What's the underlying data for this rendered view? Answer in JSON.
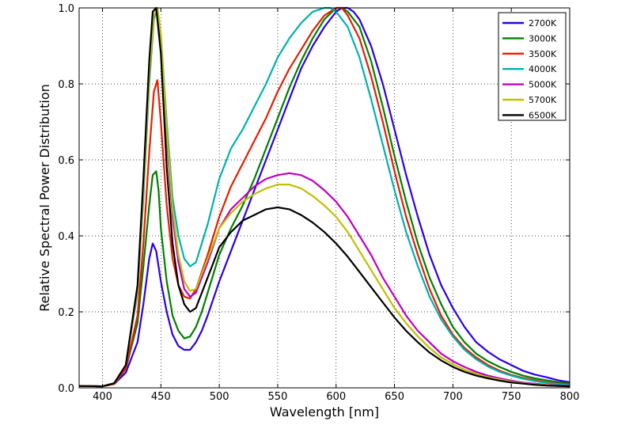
{
  "chart_data": {
    "type": "line",
    "title": "",
    "xlabel": "Wavelength [nm]",
    "ylabel": "Relative Spectral Power Distribution",
    "xlim": [
      380,
      800
    ],
    "ylim": [
      0.0,
      1.0
    ],
    "xticks": [
      400,
      450,
      500,
      550,
      600,
      650,
      700,
      750,
      800
    ],
    "yticks": [
      0.0,
      0.2,
      0.4,
      0.6,
      0.8,
      1.0
    ],
    "xtick_labels": [
      "400",
      "450",
      "500",
      "550",
      "600",
      "650",
      "700",
      "750",
      "800"
    ],
    "ytick_labels": [
      "0.0",
      "0.2",
      "0.4",
      "0.6",
      "0.8",
      "1.0"
    ],
    "grid": true,
    "legend_position": "top-right",
    "series": [
      {
        "name": "2700K",
        "color": "#2b00e6",
        "x": [
          380,
          400,
          410,
          420,
          430,
          435,
          440,
          443,
          446,
          450,
          455,
          460,
          465,
          470,
          475,
          480,
          485,
          490,
          500,
          510,
          520,
          530,
          540,
          550,
          560,
          570,
          580,
          590,
          600,
          605,
          610,
          615,
          620,
          630,
          640,
          650,
          660,
          670,
          680,
          690,
          700,
          710,
          720,
          730,
          740,
          750,
          760,
          770,
          780,
          790,
          800
        ],
        "y": [
          0.005,
          0.004,
          0.01,
          0.04,
          0.12,
          0.22,
          0.34,
          0.38,
          0.36,
          0.28,
          0.2,
          0.14,
          0.11,
          0.1,
          0.1,
          0.12,
          0.15,
          0.19,
          0.28,
          0.36,
          0.44,
          0.52,
          0.6,
          0.68,
          0.76,
          0.84,
          0.9,
          0.95,
          0.99,
          1.0,
          1.0,
          0.99,
          0.97,
          0.9,
          0.8,
          0.68,
          0.56,
          0.45,
          0.35,
          0.27,
          0.21,
          0.16,
          0.12,
          0.095,
          0.075,
          0.06,
          0.045,
          0.035,
          0.028,
          0.02,
          0.015
        ]
      },
      {
        "name": "3000K",
        "color": "#007f00",
        "x": [
          380,
          400,
          410,
          420,
          430,
          435,
          440,
          443,
          446,
          448,
          450,
          455,
          460,
          465,
          470,
          475,
          480,
          485,
          490,
          500,
          510,
          520,
          530,
          540,
          550,
          560,
          570,
          580,
          590,
          600,
          605,
          610,
          620,
          630,
          640,
          650,
          660,
          670,
          680,
          690,
          700,
          710,
          720,
          730,
          740,
          750,
          760,
          770,
          780,
          790,
          800
        ],
        "y": [
          0.005,
          0.004,
          0.01,
          0.05,
          0.17,
          0.32,
          0.48,
          0.56,
          0.57,
          0.52,
          0.42,
          0.28,
          0.19,
          0.15,
          0.13,
          0.135,
          0.16,
          0.2,
          0.25,
          0.35,
          0.42,
          0.48,
          0.55,
          0.63,
          0.71,
          0.79,
          0.86,
          0.92,
          0.97,
          1.0,
          1.0,
          0.99,
          0.95,
          0.86,
          0.74,
          0.61,
          0.49,
          0.38,
          0.29,
          0.22,
          0.16,
          0.12,
          0.09,
          0.07,
          0.055,
          0.042,
          0.032,
          0.025,
          0.02,
          0.015,
          0.012
        ]
      },
      {
        "name": "3500K",
        "color": "#e61e00",
        "x": [
          380,
          400,
          410,
          420,
          430,
          435,
          440,
          444,
          447,
          450,
          455,
          460,
          465,
          470,
          475,
          480,
          490,
          500,
          510,
          520,
          530,
          540,
          550,
          560,
          570,
          580,
          590,
          600,
          605,
          610,
          620,
          630,
          640,
          650,
          660,
          670,
          680,
          690,
          700,
          710,
          720,
          730,
          740,
          750,
          760,
          770,
          780,
          790,
          800
        ],
        "y": [
          0.005,
          0.004,
          0.01,
          0.05,
          0.19,
          0.38,
          0.62,
          0.78,
          0.81,
          0.7,
          0.48,
          0.34,
          0.27,
          0.24,
          0.235,
          0.26,
          0.35,
          0.45,
          0.53,
          0.59,
          0.65,
          0.71,
          0.78,
          0.84,
          0.89,
          0.94,
          0.98,
          1.0,
          1.0,
          0.98,
          0.92,
          0.82,
          0.7,
          0.57,
          0.45,
          0.35,
          0.26,
          0.19,
          0.14,
          0.105,
          0.08,
          0.06,
          0.045,
          0.034,
          0.026,
          0.02,
          0.015,
          0.011,
          0.008
        ]
      },
      {
        "name": "4000K",
        "color": "#00b0b0",
        "x": [
          380,
          400,
          410,
          420,
          430,
          435,
          440,
          444,
          447,
          450,
          455,
          460,
          465,
          470,
          475,
          480,
          490,
          500,
          510,
          520,
          530,
          540,
          550,
          560,
          570,
          580,
          590,
          595,
          600,
          610,
          620,
          630,
          640,
          650,
          660,
          670,
          680,
          690,
          700,
          710,
          720,
          730,
          740,
          750,
          760,
          770,
          780,
          790,
          800
        ],
        "y": [
          0.005,
          0.004,
          0.012,
          0.06,
          0.25,
          0.5,
          0.8,
          0.97,
          1.0,
          0.93,
          0.7,
          0.5,
          0.4,
          0.34,
          0.32,
          0.33,
          0.43,
          0.55,
          0.63,
          0.68,
          0.74,
          0.8,
          0.87,
          0.92,
          0.96,
          0.99,
          1.0,
          1.0,
          0.99,
          0.95,
          0.87,
          0.76,
          0.64,
          0.52,
          0.41,
          0.32,
          0.24,
          0.18,
          0.135,
          0.1,
          0.075,
          0.056,
          0.042,
          0.032,
          0.024,
          0.018,
          0.013,
          0.01,
          0.007
        ]
      },
      {
        "name": "5000K",
        "color": "#bf00bf",
        "x": [
          380,
          400,
          410,
          420,
          430,
          435,
          440,
          444,
          447,
          450,
          455,
          460,
          465,
          470,
          475,
          480,
          490,
          500,
          510,
          520,
          530,
          540,
          550,
          560,
          570,
          580,
          590,
          600,
          610,
          620,
          630,
          640,
          650,
          660,
          670,
          680,
          690,
          700,
          710,
          720,
          730,
          740,
          750,
          760,
          770,
          780,
          790,
          800
        ],
        "y": [
          0.005,
          0.004,
          0.012,
          0.06,
          0.26,
          0.52,
          0.82,
          0.98,
          1.0,
          0.92,
          0.66,
          0.45,
          0.33,
          0.26,
          0.24,
          0.25,
          0.33,
          0.42,
          0.47,
          0.5,
          0.53,
          0.55,
          0.56,
          0.565,
          0.56,
          0.545,
          0.52,
          0.49,
          0.45,
          0.4,
          0.35,
          0.29,
          0.24,
          0.19,
          0.15,
          0.12,
          0.09,
          0.07,
          0.055,
          0.042,
          0.032,
          0.025,
          0.019,
          0.014,
          0.011,
          0.008,
          0.006,
          0.005
        ]
      },
      {
        "name": "5700K",
        "color": "#bfbf00",
        "x": [
          380,
          400,
          410,
          420,
          430,
          435,
          440,
          444,
          447,
          450,
          455,
          460,
          465,
          470,
          475,
          480,
          490,
          500,
          510,
          520,
          530,
          540,
          550,
          560,
          570,
          580,
          590,
          600,
          610,
          620,
          630,
          640,
          650,
          660,
          670,
          680,
          690,
          700,
          710,
          720,
          730,
          740,
          750,
          760,
          770,
          780,
          790,
          800
        ],
        "y": [
          0.005,
          0.004,
          0.012,
          0.06,
          0.26,
          0.52,
          0.82,
          0.98,
          1.0,
          0.93,
          0.68,
          0.47,
          0.35,
          0.28,
          0.255,
          0.26,
          0.34,
          0.42,
          0.46,
          0.49,
          0.51,
          0.525,
          0.535,
          0.535,
          0.525,
          0.505,
          0.48,
          0.45,
          0.41,
          0.36,
          0.31,
          0.26,
          0.21,
          0.17,
          0.135,
          0.105,
          0.08,
          0.062,
          0.048,
          0.037,
          0.028,
          0.022,
          0.016,
          0.012,
          0.009,
          0.007,
          0.005,
          0.004
        ]
      },
      {
        "name": "6500K",
        "color": "#000000",
        "x": [
          380,
          400,
          410,
          420,
          430,
          435,
          440,
          443,
          446,
          450,
          455,
          460,
          465,
          470,
          475,
          480,
          490,
          500,
          510,
          520,
          530,
          540,
          550,
          560,
          570,
          580,
          590,
          600,
          610,
          620,
          630,
          640,
          650,
          660,
          670,
          680,
          690,
          700,
          710,
          720,
          730,
          740,
          750,
          760,
          770,
          780,
          790,
          800
        ],
        "y": [
          0.005,
          0.004,
          0.012,
          0.06,
          0.27,
          0.55,
          0.86,
          0.99,
          1.0,
          0.88,
          0.58,
          0.38,
          0.27,
          0.22,
          0.2,
          0.21,
          0.29,
          0.37,
          0.41,
          0.44,
          0.455,
          0.47,
          0.475,
          0.47,
          0.455,
          0.435,
          0.41,
          0.38,
          0.345,
          0.305,
          0.265,
          0.225,
          0.185,
          0.15,
          0.12,
          0.093,
          0.072,
          0.055,
          0.042,
          0.032,
          0.025,
          0.019,
          0.014,
          0.011,
          0.008,
          0.006,
          0.005,
          0.004
        ]
      }
    ]
  }
}
